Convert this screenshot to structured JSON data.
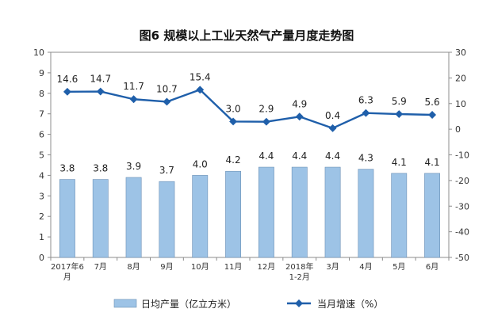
{
  "chart_data": {
    "type": "bar+line",
    "title": "图6  规模以上工业天然气产量月度走势图",
    "categories": [
      [
        "2017年6",
        "月"
      ],
      [
        "7月"
      ],
      [
        "8月"
      ],
      [
        "9月"
      ],
      [
        "10月"
      ],
      [
        "11月"
      ],
      [
        "12月"
      ],
      [
        "2018年",
        "1-2月"
      ],
      [
        "3月"
      ],
      [
        "4月"
      ],
      [
        "5月"
      ],
      [
        "6月"
      ]
    ],
    "series": [
      {
        "name": "日均产量（亿立方米）",
        "type": "bar",
        "axis": "left",
        "values": [
          3.8,
          3.8,
          3.9,
          3.7,
          4.0,
          4.2,
          4.4,
          4.4,
          4.4,
          4.3,
          4.1,
          4.1
        ],
        "labels": [
          "3.8",
          "3.8",
          "3.9",
          "3.7",
          "4.0",
          "4.2",
          "4.4",
          "4.4",
          "4.4",
          "4.3",
          "4.1",
          "4.1"
        ],
        "color": "#9dc3e6"
      },
      {
        "name": "当月增速（%）",
        "type": "line",
        "axis": "right",
        "values": [
          14.6,
          14.7,
          11.7,
          10.7,
          15.4,
          3.0,
          2.9,
          4.9,
          0.4,
          6.3,
          5.9,
          5.6
        ],
        "labels": [
          "14.6",
          "14.7",
          "11.7",
          "10.7",
          "15.4",
          "3.0",
          "2.9",
          "4.9",
          "0.4",
          "6.3",
          "5.9",
          "5.6"
        ],
        "color": "#1f5faa"
      }
    ],
    "y_left": {
      "min": 0,
      "max": 10,
      "step": 1
    },
    "y_right": {
      "min": -50,
      "max": 30,
      "step": 10
    },
    "grid": false,
    "legend": "bottom"
  }
}
